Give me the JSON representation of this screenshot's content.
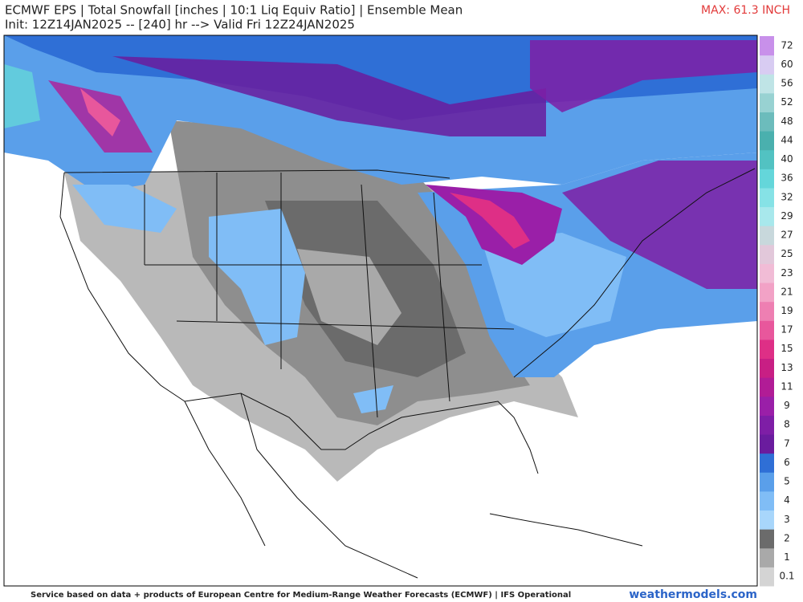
{
  "header": {
    "title": "ECMWF EPS | Total Snowfall [inches | 10:1 Liq Equiv Ratio] | Ensemble Mean",
    "subtitle": "Init: 12Z14JAN2025 -- [240] hr --> Valid Fri 12Z24JAN2025",
    "max_label": "MAX: 61.3 INCH"
  },
  "colorbar": {
    "levels": [
      0.1,
      1,
      2,
      3,
      4,
      5,
      6,
      7,
      8,
      9,
      11,
      13,
      15,
      17,
      19,
      21,
      23,
      25,
      27,
      29,
      32,
      36,
      40,
      44,
      48,
      52,
      56,
      60,
      72
    ],
    "colors": [
      "#d4d4d4",
      "#a9a9a9",
      "#6b6b6b",
      "#a8d6fb",
      "#80bdf6",
      "#5a9fea",
      "#2f6fd6",
      "#6a1c9e",
      "#7e1ea6",
      "#9a1fa8",
      "#b11c96",
      "#c81f84",
      "#de2f86",
      "#e8579c",
      "#ee7fb2",
      "#f2a2c6",
      "#f1bcd6",
      "#e2c8da",
      "#c8d8dc",
      "#a8e8ec",
      "#86e2e6",
      "#64d6da",
      "#52c2c2",
      "#4ab0ae",
      "#6cbcbc",
      "#98d2d2",
      "#bfe4e6",
      "#d8ccf2",
      "#c890ea"
    ]
  },
  "footer": {
    "credit": "Service based on data + products of European Centre for Medium-Range Weather Forecasts (ECMWF) | IFS Operational",
    "site": "weathermodels.com"
  }
}
